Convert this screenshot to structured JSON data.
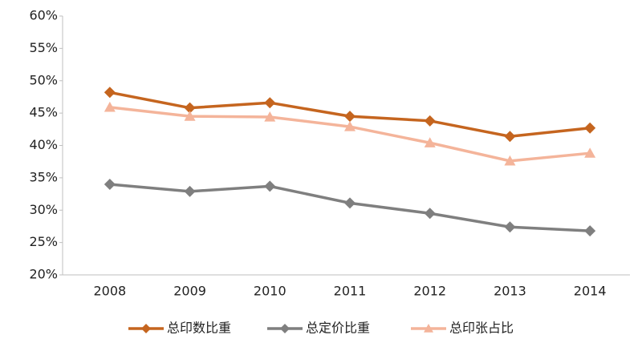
{
  "chart_data": {
    "type": "line",
    "categories": [
      "2008",
      "2009",
      "2010",
      "2011",
      "2012",
      "2013",
      "2014"
    ],
    "series": [
      {
        "name": "总印数比重",
        "color": "#c5651f",
        "marker": "diamond",
        "values": [
          48.2,
          45.8,
          46.6,
          44.5,
          43.8,
          41.4,
          42.7
        ]
      },
      {
        "name": "总定价比重",
        "color": "#7f7f7f",
        "marker": "diamond",
        "values": [
          34.0,
          32.9,
          33.7,
          31.1,
          29.5,
          27.4,
          26.8
        ]
      },
      {
        "name": "总印张占比",
        "color": "#f4b49a",
        "marker": "triangle",
        "values": [
          45.9,
          44.5,
          44.4,
          42.9,
          40.4,
          37.6,
          38.8
        ]
      }
    ],
    "ylim": [
      20,
      60
    ],
    "yticks": [
      {
        "value": 20,
        "label": "20%"
      },
      {
        "value": 25,
        "label": "25%"
      },
      {
        "value": 30,
        "label": "30%"
      },
      {
        "value": 35,
        "label": "35%"
      },
      {
        "value": 40,
        "label": "40%"
      },
      {
        "value": 45,
        "label": "45%"
      },
      {
        "value": 50,
        "label": "50%"
      },
      {
        "value": 55,
        "label": "55%"
      },
      {
        "value": 60,
        "label": "60%"
      }
    ],
    "grid": false,
    "legend": "bottom"
  }
}
